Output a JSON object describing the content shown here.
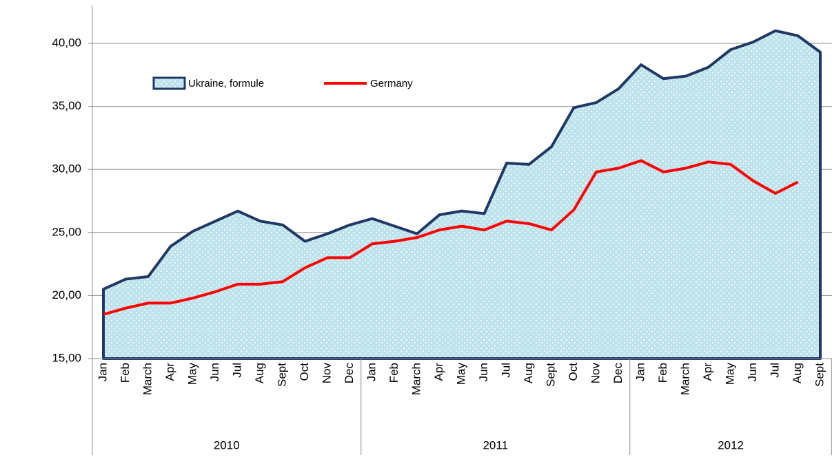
{
  "chart_data": {
    "type": "area-line",
    "categories": [
      "Jan",
      "Feb",
      "March",
      "Apr",
      "May",
      "Jun",
      "Jul",
      "Aug",
      "Sept",
      "Oct",
      "Nov",
      "Dec",
      "Jan",
      "Feb",
      "March",
      "Apr",
      "May",
      "Jun",
      "Jul",
      "Aug",
      "Sept",
      "Oct",
      "Nov",
      "Dec",
      "Jan",
      "Feb",
      "March",
      "Apr",
      "May",
      "Jun",
      "Jul",
      "Aug",
      "Sept"
    ],
    "category_groups": [
      {
        "label": "2010",
        "span": 12
      },
      {
        "label": "2011",
        "span": 12
      },
      {
        "label": "2012",
        "span": 9
      }
    ],
    "series": [
      {
        "name": "Ukraine, formule",
        "type": "area",
        "color": "#bfe3ec",
        "edge_color": "#1f3864",
        "values": [
          20.5,
          21.3,
          21.5,
          23.9,
          25.1,
          25.9,
          26.7,
          25.9,
          25.6,
          24.3,
          24.9,
          25.6,
          26.1,
          25.5,
          24.9,
          26.4,
          26.7,
          26.5,
          30.5,
          30.4,
          31.8,
          34.9,
          35.3,
          36.4,
          38.3,
          37.2,
          37.4,
          38.1,
          39.5,
          40.1,
          41.0,
          40.6,
          39.3
        ]
      },
      {
        "name": "Germany",
        "type": "line",
        "color": "#ff0000",
        "values": [
          18.5,
          19.0,
          19.4,
          19.4,
          19.8,
          20.3,
          20.9,
          20.9,
          21.1,
          22.2,
          23.0,
          23.0,
          24.1,
          24.3,
          24.6,
          25.2,
          25.5,
          25.2,
          25.9,
          25.7,
          25.2,
          26.8,
          29.8,
          30.1,
          30.7,
          29.8,
          30.1,
          30.6,
          30.4,
          29.1,
          28.1,
          29.0,
          null
        ]
      }
    ],
    "ylim": [
      15,
      43
    ],
    "yticks": [
      {
        "value": 15,
        "label": "15,00"
      },
      {
        "value": 20,
        "label": "20,00"
      },
      {
        "value": 25,
        "label": "25,00"
      },
      {
        "value": 30,
        "label": "30,00"
      },
      {
        "value": 35,
        "label": "35,00"
      },
      {
        "value": 40,
        "label": "40,00"
      }
    ],
    "grid": true,
    "legend": "top-left"
  }
}
